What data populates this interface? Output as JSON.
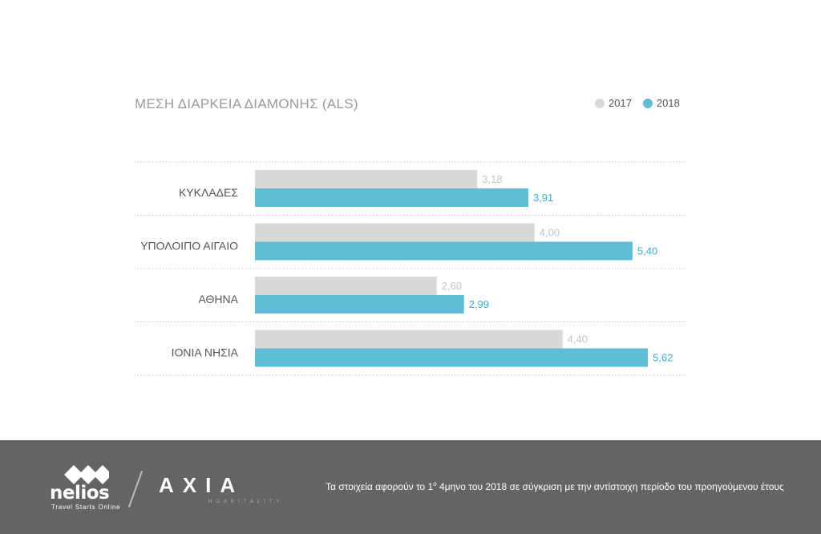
{
  "chart_data": {
    "type": "bar",
    "orientation": "horizontal",
    "title": "ΜΕΣΗ ΔΙΑΡΚΕΙΑ ΔΙΑΜΟΝΗΣ (ALS)",
    "categories": [
      "ΚΥΚΛΑΔΕΣ",
      "ΥΠΟΛΟΙΠΟ ΑΙΓΑΙΟ",
      "ΑΘΗΝΑ",
      "ΙΟΝΙΑ ΝΗΣΙΑ"
    ],
    "series": [
      {
        "name": "2017",
        "values": [
          3.18,
          4.0,
          2.6,
          4.4
        ],
        "labels": [
          "3,18",
          "4,00",
          "2,60",
          "4,40"
        ],
        "color": "#d9d8d6"
      },
      {
        "name": "2018",
        "values": [
          3.91,
          5.4,
          2.99,
          5.62
        ],
        "labels": [
          "3,91",
          "5,40",
          "2,99",
          "5,62"
        ],
        "color": "#5fbcd5"
      }
    ],
    "xlim": [
      0,
      6
    ],
    "grid": false,
    "legend": "top-right",
    "colors": {
      "label_2017": "#c4c4c4",
      "label_2018": "#3aaed0",
      "category_text": "#555555",
      "separator": "#c8c8c8"
    }
  },
  "footer": {
    "nelios_logo": "nelios",
    "nelios_tagline": "Travel Starts Online",
    "axia_logo": "AXIA",
    "axia_tagline": "HOSPITALITY",
    "note_pre": "Τα στοιχεία αφορούν το 1",
    "note_sup": "ο",
    "note_post": " 4μηνο του 2018 σε σύγκριση με την αντίστοιχη περίοδο του προηγούμενου έτους",
    "background": "#636466"
  }
}
